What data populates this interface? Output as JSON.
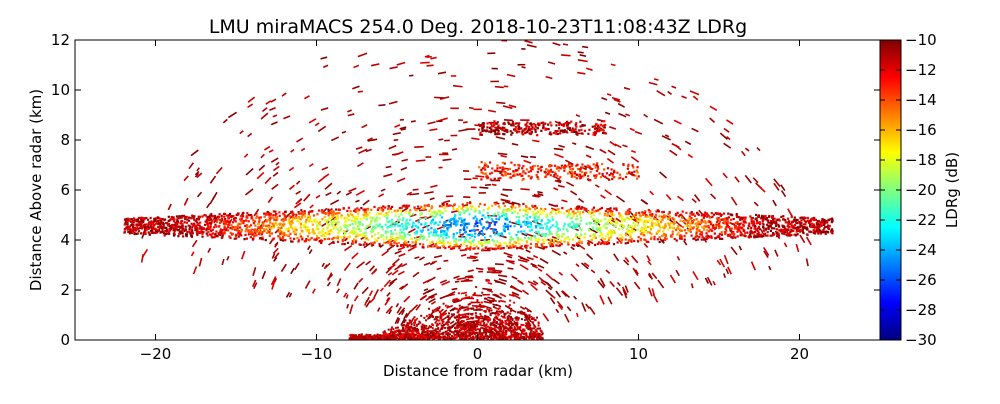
{
  "chart_data": {
    "type": "heatmap",
    "title": "LMU miraMACS 254.0 Deg. 2018-10-23T11:08:43Z  LDRg",
    "xlabel": "Distance from radar (km)",
    "ylabel": "Distance Above radar  (km)",
    "xlim": [
      -25,
      25
    ],
    "ylim": [
      0,
      12
    ],
    "x_ticks": [
      "−20",
      "−10",
      "0",
      "10",
      "20"
    ],
    "x_tick_values": [
      -20,
      -10,
      0,
      10,
      20
    ],
    "y_ticks": [
      "0",
      "2",
      "4",
      "6",
      "8",
      "10",
      "12"
    ],
    "y_tick_values": [
      0,
      2,
      4,
      6,
      8,
      10,
      12
    ],
    "grid": false,
    "colorbar": {
      "label": "LDRg (dB)",
      "range": [
        -30,
        -10
      ],
      "ticks": [
        "−10",
        "−12",
        "−14",
        "−16",
        "−18",
        "−20",
        "−22",
        "−24",
        "−26",
        "−28",
        "−30"
      ],
      "tick_values": [
        -10,
        -12,
        -14,
        -16,
        -18,
        -20,
        -22,
        -24,
        -26,
        -28,
        -30
      ],
      "colormap": "jet",
      "colors": [
        "#00007f",
        "#0000ff",
        "#007fff",
        "#00ffff",
        "#7fff7f",
        "#ffff00",
        "#ff7f00",
        "#ff0000",
        "#7f0000"
      ]
    },
    "features": [
      {
        "name": "melting layer",
        "x_range": [
          -22,
          22
        ],
        "y_range": [
          3.8,
          5.4
        ],
        "ldr_core": -26,
        "ldr_edge": -11
      },
      {
        "name": "cloud layer",
        "x_range": [
          0,
          10
        ],
        "y_range": [
          6.4,
          7.2
        ],
        "ldr": -13
      },
      {
        "name": "cloud layer",
        "x_range": [
          0,
          8
        ],
        "y_range": [
          8.2,
          8.8
        ],
        "ldr": -11
      },
      {
        "name": "ground clutter",
        "x_range": [
          -8,
          4
        ],
        "y_range": [
          0,
          2.4
        ],
        "ldr": -10
      }
    ]
  }
}
